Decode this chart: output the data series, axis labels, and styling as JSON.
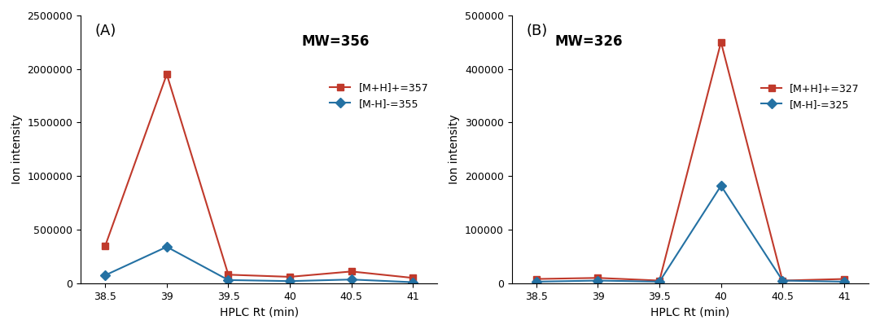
{
  "panel_A": {
    "label": "(A)",
    "mw_text": "MW=356",
    "x": [
      38.5,
      39,
      39.5,
      40,
      40.5,
      41
    ],
    "red_y": [
      350000,
      1950000,
      80000,
      60000,
      110000,
      50000
    ],
    "blue_y": [
      75000,
      340000,
      30000,
      20000,
      35000,
      10000
    ],
    "red_label": "[M+H]+=357",
    "blue_label": "[M-H]-=355",
    "ylim": [
      0,
      2500000
    ],
    "yticks": [
      0,
      500000,
      1000000,
      1500000,
      2000000,
      2500000
    ],
    "ylabel": "Ion intensity",
    "xlabel": "HPLC Rt (min)"
  },
  "panel_B": {
    "label": "(B)",
    "mw_text": "MW=326",
    "x": [
      38.5,
      39,
      39.5,
      40,
      40.5,
      41
    ],
    "red_y": [
      8000,
      10000,
      5000,
      450000,
      5000,
      8000
    ],
    "blue_y": [
      3000,
      5000,
      3000,
      182000,
      5000,
      3000
    ],
    "red_label": "[M+H]+=327",
    "blue_label": "[M-H]-=325",
    "ylim": [
      0,
      500000
    ],
    "yticks": [
      0,
      100000,
      200000,
      300000,
      400000,
      500000
    ],
    "ylabel": "Ion intensity",
    "xlabel": "HPLC Rt (min)"
  },
  "red_color": "#C0392B",
  "blue_color": "#2471A3",
  "bg_color": "#FFFFFF",
  "marker_red": "s",
  "marker_blue": "D",
  "linewidth": 1.5,
  "markersize": 6
}
